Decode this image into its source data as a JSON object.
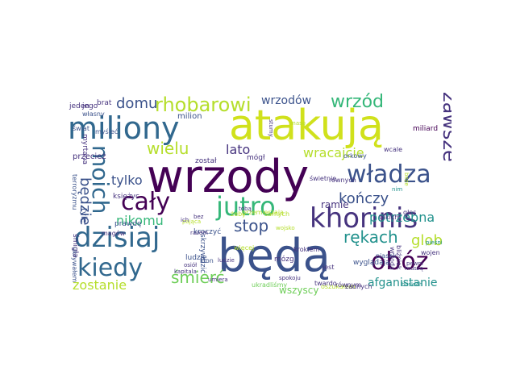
{
  "palette": {
    "dark_purple": "#440154",
    "indigo": "#3b528b",
    "navy": "#46337e",
    "blue": "#31688e",
    "teal": "#21918c",
    "sea_green": "#1f9e89",
    "green": "#35b779",
    "light_green": "#6ece58",
    "lime": "#b5de2b",
    "yellow": "#e3e418",
    "gold": "#d0e11c"
  },
  "words": [
    {
      "text": "wrzody",
      "color": "#440154"
    },
    {
      "text": "będą",
      "color": "#3b528b"
    },
    {
      "text": "atakują",
      "color": "#d0e11c"
    },
    {
      "text": "miliony",
      "color": "#31688e"
    },
    {
      "text": "khorinis",
      "color": "#46337e"
    },
    {
      "text": "dzisiaj",
      "color": "#31688e"
    },
    {
      "text": "jutro",
      "color": "#35b779"
    },
    {
      "text": "władza",
      "color": "#3b528b"
    },
    {
      "text": "obóz",
      "color": "#440154"
    },
    {
      "text": "cały",
      "color": "#440154"
    },
    {
      "text": "kiedy",
      "color": "#31688e"
    },
    {
      "text": "moich",
      "color": "#31688e"
    },
    {
      "text": "rhobarowi",
      "color": "#b5de2b"
    },
    {
      "text": "wrzód",
      "color": "#35b779"
    },
    {
      "text": "zawsze",
      "color": "#46337e"
    },
    {
      "text": "wielu",
      "color": "#b5de2b"
    },
    {
      "text": "stop",
      "color": "#3b528b"
    },
    {
      "text": "rękach",
      "color": "#21918c"
    },
    {
      "text": "glob",
      "color": "#b5de2b"
    },
    {
      "text": "śmierć",
      "color": "#6ece58"
    },
    {
      "text": "będzie",
      "color": "#3b528b"
    },
    {
      "text": "domu",
      "color": "#3b528b"
    },
    {
      "text": "lato",
      "color": "#46337e"
    },
    {
      "text": "wracajcie",
      "color": "#b5de2b"
    },
    {
      "text": "kończy",
      "color": "#3b528b"
    },
    {
      "text": "potrzebna",
      "color": "#21918c"
    },
    {
      "text": "chłopaki",
      "color": "#b5de2b"
    },
    {
      "text": "zostanie",
      "color": "#b5de2b"
    },
    {
      "text": "afganistanie",
      "color": "#21918c"
    },
    {
      "text": "nikomu",
      "color": "#35b779"
    },
    {
      "text": "tylko",
      "color": "#3b528b"
    },
    {
      "text": "wrzodów",
      "color": "#3b528b"
    },
    {
      "text": "wszyscy",
      "color": "#6ece58"
    },
    {
      "text": "ramie",
      "color": "#46337e"
    },
    {
      "text": "milion",
      "color": "#3b528b"
    },
    {
      "text": "brat",
      "color": "#46337e"
    },
    {
      "text": "jego",
      "color": "#46337e"
    },
    {
      "text": "własny",
      "color": "#3b528b"
    },
    {
      "text": "jeden",
      "color": "#46337e"
    },
    {
      "text": "świat",
      "color": "#3b528b"
    },
    {
      "text": "myśleć",
      "color": "#3b528b"
    },
    {
      "text": "przecież",
      "color": "#46337e"
    },
    {
      "text": "terroryzmu",
      "color": "#3b528b"
    },
    {
      "text": "myrtana",
      "color": "#46337e"
    },
    {
      "text": "księżyc",
      "color": "#46337e"
    },
    {
      "text": "prawdę",
      "color": "#3b528b"
    },
    {
      "text": "śmigła",
      "color": "#46337e"
    },
    {
      "text": "magów",
      "color": "#46337e"
    },
    {
      "text": "tyle",
      "color": "#3b528b"
    },
    {
      "text": "ukrywałem",
      "color": "#3b528b"
    },
    {
      "text": "został",
      "color": "#46337e"
    },
    {
      "text": "mógł",
      "color": "#46337e"
    },
    {
      "text": "żeby",
      "color": "#b5de2b"
    },
    {
      "text": "przemierzają",
      "color": "#b5de2b"
    },
    {
      "text": "kroczyć",
      "color": "#3b528b"
    },
    {
      "text": "ludzie",
      "color": "#3b528b"
    },
    {
      "text": "klon",
      "color": "#3b528b"
    },
    {
      "text": "więcej",
      "color": "#b5de2b"
    },
    {
      "text": "mózg",
      "color": "#46337e"
    },
    {
      "text": "krokiem",
      "color": "#46337e"
    },
    {
      "text": "skrzywdzić",
      "color": "#3b528b"
    },
    {
      "text": "ukradliśmy",
      "color": "#6ece58"
    },
    {
      "text": "oszukałem",
      "color": "#b5de2b"
    },
    {
      "text": "równym",
      "color": "#46337e"
    },
    {
      "text": "twardo",
      "color": "#46337e"
    },
    {
      "text": "jest",
      "color": "#46337e"
    },
    {
      "text": "wyglądają",
      "color": "#3b528b"
    },
    {
      "text": "takich",
      "color": "#46337e"
    },
    {
      "text": "samych",
      "color": "#b5de2b"
    },
    {
      "text": "żadnych",
      "color": "#46337e"
    },
    {
      "text": "świetnie",
      "color": "#46337e"
    },
    {
      "text": "równych",
      "color": "#46337e"
    },
    {
      "text": "głos",
      "color": "#46337e"
    },
    {
      "text": "miliard",
      "color": "#440154"
    },
    {
      "text": "wcale",
      "color": "#46337e"
    },
    {
      "text": "orkowy",
      "color": "#3b528b"
    },
    {
      "text": "piasek",
      "color": "#3b528b"
    },
    {
      "text": "bliźniak",
      "color": "#46337e"
    },
    {
      "text": "wojen",
      "color": "#46337e"
    },
    {
      "text": "pewni",
      "color": "#46337e"
    },
    {
      "text": "muszą",
      "color": "#46337e"
    },
    {
      "text": "wrzoda",
      "color": "#46337e"
    },
    {
      "text": "stumy",
      "color": "#46337e"
    },
    {
      "text": "masę",
      "color": "#b5de2b"
    },
    {
      "text": "pająca",
      "color": "#b5de2b"
    },
    {
      "text": "razem",
      "color": "#46337e"
    },
    {
      "text": "wojsko",
      "color": "#b5de2b"
    },
    {
      "text": "osiół",
      "color": "#46337e"
    },
    {
      "text": "kapitala",
      "color": "#46337e"
    },
    {
      "text": "umiera",
      "color": "#46337e"
    },
    {
      "text": "ludzie",
      "color": "#46337e"
    },
    {
      "text": "bliskich",
      "color": "#21918c"
    },
    {
      "text": "pieśni",
      "color": "#21918c"
    },
    {
      "text": "boże",
      "color": "#b5de2b"
    },
    {
      "text": "tobą",
      "color": "#46337e"
    },
    {
      "text": "ich",
      "color": "#46337e"
    },
    {
      "text": "bez",
      "color": "#46337e"
    },
    {
      "text": "spokoju",
      "color": "#46337e"
    },
    {
      "text": "nim",
      "color": "#21918c"
    }
  ]
}
